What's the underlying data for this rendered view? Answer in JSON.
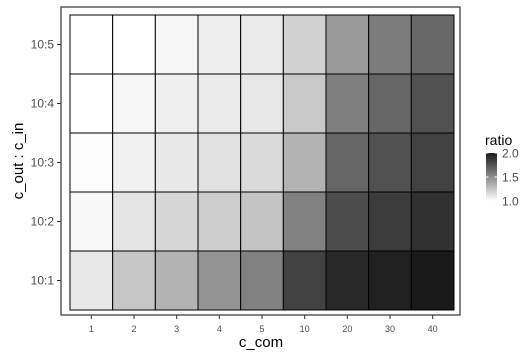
{
  "chart_data": {
    "type": "heatmap",
    "xlabel": "c_com",
    "ylabel": "c_out : c_in",
    "x_categories": [
      "1",
      "2",
      "3",
      "4",
      "5",
      "10",
      "20",
      "30",
      "40"
    ],
    "y_categories": [
      "10:1",
      "10:2",
      "10:3",
      "10:4",
      "10:5"
    ],
    "values": [
      [
        1.1,
        1.25,
        1.33,
        1.47,
        1.55,
        1.83,
        1.94,
        1.97,
        2.0
      ],
      [
        1.03,
        1.12,
        1.18,
        1.22,
        1.26,
        1.55,
        1.78,
        1.85,
        1.9
      ],
      [
        1.01,
        1.06,
        1.1,
        1.13,
        1.16,
        1.33,
        1.67,
        1.76,
        1.83
      ],
      [
        1.0,
        1.04,
        1.07,
        1.09,
        1.11,
        1.24,
        1.56,
        1.67,
        1.76
      ],
      [
        1.0,
        1.0,
        1.04,
        1.08,
        1.09,
        1.2,
        1.44,
        1.57,
        1.66
      ]
    ],
    "legend": {
      "title": "ratio",
      "ticks": [
        "1.0",
        "1.5",
        "2.0"
      ],
      "tick_values": [
        1.0,
        1.5,
        2.0
      ],
      "range": [
        1.0,
        2.0
      ],
      "position": "right"
    },
    "colors": {
      "low": "#ffffff",
      "high": "#1a1a1a",
      "tile_border": "#000000"
    },
    "grid": false
  }
}
